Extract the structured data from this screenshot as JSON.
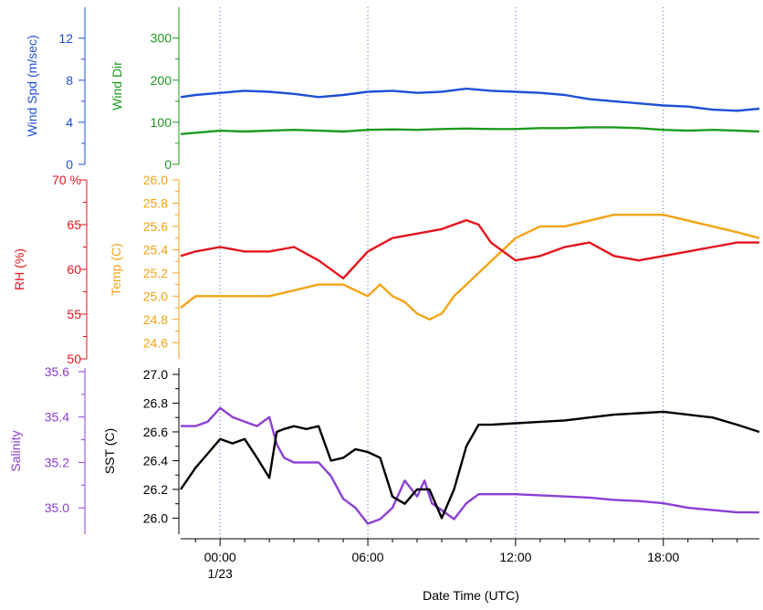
{
  "chart_data": {
    "type": "line",
    "x_axis": {
      "label": "Date Time (UTC)",
      "ticks": [
        "00:00",
        "06:00",
        "12:00",
        "18:00"
      ],
      "date_label": "1/23",
      "range_hours": [
        -1.6,
        21.9
      ],
      "grid": "dotted vertical at 00:00, 06:00, 12:00, 18:00"
    },
    "panels": [
      {
        "axes": [
          {
            "label": "Wind Spd (m/sec)",
            "ticks": [
              "0",
              "4",
              "8",
              "12"
            ],
            "range": [
              0,
              14.5
            ],
            "color": "#1f4fd8"
          },
          {
            "label": "Wind Dir",
            "ticks": [
              "0",
              "100",
              "200",
              "300"
            ],
            "range": [
              0,
              360
            ],
            "color": "#1d9a1d"
          }
        ],
        "series": [
          {
            "axis": "Wind Dir",
            "color": "#1d9a1d",
            "x": [
              -1.6,
              -1,
              0,
              1,
              2,
              3,
              4,
              5,
              6,
              7,
              8,
              9,
              10,
              11,
              12,
              13,
              14,
              15,
              16,
              17,
              18,
              19,
              20,
              21,
              21.9
            ],
            "y": [
              72,
              75,
              80,
              78,
              80,
              82,
              80,
              78,
              82,
              83,
              82,
              84,
              85,
              84,
              84,
              86,
              86,
              88,
              88,
              86,
              82,
              80,
              82,
              80,
              78
            ]
          },
          {
            "axis": "Wind Spd (m/sec)",
            "color": "#1f4fd8",
            "x": [
              -1.6,
              -1,
              0,
              1,
              2,
              3,
              4,
              5,
              6,
              7,
              8,
              9,
              10,
              11,
              12,
              13,
              14,
              15,
              16,
              17,
              18,
              19,
              20,
              21,
              21.9
            ],
            "y": [
              6.4,
              6.6,
              6.8,
              7.0,
              6.9,
              6.7,
              6.4,
              6.6,
              6.9,
              7.0,
              6.8,
              6.9,
              7.2,
              7.0,
              6.9,
              6.8,
              6.6,
              6.2,
              6.0,
              5.8,
              5.6,
              5.5,
              5.2,
              5.1,
              5.3
            ]
          }
        ]
      },
      {
        "axes": [
          {
            "label": "RH (%)",
            "ticks": [
              "50",
              "55",
              "60",
              "65",
              "70 %"
            ],
            "range": [
              50,
              70
            ],
            "color": "#e5141c"
          },
          {
            "label": "Temp (C)",
            "ticks": [
              "24.6",
              "24.8",
              "25.0",
              "25.2",
              "25.4",
              "25.6",
              "25.8",
              "26.0"
            ],
            "range": [
              24.5,
              26.0
            ],
            "color": "#f5a312"
          }
        ],
        "series": [
          {
            "axis": "Temp (C)",
            "color": "#f5a312",
            "x": [
              -1.6,
              -1,
              0,
              1,
              2,
              3,
              4,
              5,
              6,
              6.5,
              7,
              7.5,
              8,
              8.5,
              9,
              9.5,
              10,
              11,
              12,
              13,
              14,
              15,
              16,
              17,
              18,
              19,
              20,
              21,
              21.9
            ],
            "y": [
              24.9,
              25.0,
              25.0,
              25.0,
              25.0,
              25.05,
              25.1,
              25.1,
              25.0,
              25.1,
              25.0,
              24.95,
              24.85,
              24.8,
              24.85,
              25.0,
              25.1,
              25.3,
              25.5,
              25.6,
              25.6,
              25.65,
              25.7,
              25.7,
              25.7,
              25.65,
              25.6,
              25.55,
              25.5
            ]
          },
          {
            "axis": "RH (%)",
            "color": "#e5141c",
            "x": [
              -1.6,
              -1,
              0,
              1,
              2,
              3,
              4,
              5,
              6,
              7,
              8,
              9,
              10,
              10.5,
              11,
              12,
              13,
              14,
              15,
              16,
              17,
              18,
              19,
              20,
              21,
              21.9
            ],
            "y": [
              61.5,
              62,
              62.5,
              62,
              62,
              62.5,
              61,
              59,
              62,
              63.5,
              64,
              64.5,
              65.5,
              65,
              63,
              61,
              61.5,
              62.5,
              63,
              61.5,
              61,
              61.5,
              62,
              62.5,
              63,
              63
            ]
          }
        ]
      },
      {
        "axes": [
          {
            "label": "Salinity",
            "ticks": [
              "35.0",
              "35.2",
              "35.4",
              "35.6"
            ],
            "range": [
              34.92,
              35.6
            ],
            "color": "#8b3fd6"
          },
          {
            "label": "SST (C)",
            "ticks": [
              "26.0",
              "26.2",
              "26.4",
              "26.6",
              "26.8",
              "27.0"
            ],
            "range": [
              25.92,
              27.0
            ],
            "color": "#000000"
          }
        ],
        "series": [
          {
            "axis": "Salinity",
            "color": "#8b3fd6",
            "x": [
              -1.6,
              -1,
              -0.5,
              0,
              0.5,
              1,
              1.5,
              2,
              2.3,
              2.6,
              3,
              4,
              4.5,
              5,
              5.5,
              6,
              6.5,
              7,
              7.5,
              8,
              8.3,
              8.6,
              9,
              9.5,
              10,
              10.5,
              11,
              12,
              13,
              14,
              15,
              16,
              17,
              18,
              19,
              20,
              21,
              21.9
            ],
            "y": [
              35.36,
              35.36,
              35.38,
              35.44,
              35.4,
              35.38,
              35.36,
              35.4,
              35.28,
              35.22,
              35.2,
              35.2,
              35.14,
              35.04,
              35.0,
              34.93,
              34.95,
              35.0,
              35.12,
              35.05,
              35.12,
              35.02,
              34.99,
              34.95,
              35.02,
              35.06,
              35.06,
              35.06,
              35.055,
              35.05,
              35.045,
              35.035,
              35.03,
              35.02,
              35.0,
              34.99,
              34.98,
              34.98
            ]
          },
          {
            "axis": "SST (C)",
            "color": "#000000",
            "x": [
              -1.6,
              -1,
              -0.5,
              0,
              0.5,
              1,
              1.5,
              2,
              2.3,
              2.6,
              3,
              3.5,
              4,
              4.5,
              5,
              5.5,
              6,
              6.5,
              7,
              7.5,
              8,
              8.5,
              9,
              9.5,
              10,
              10.5,
              11,
              12,
              13,
              14,
              15,
              16,
              17,
              18,
              19,
              20,
              21,
              21.9
            ],
            "y": [
              26.2,
              26.35,
              26.45,
              26.55,
              26.52,
              26.55,
              26.42,
              26.28,
              26.6,
              26.62,
              26.64,
              26.62,
              26.64,
              26.4,
              26.42,
              26.48,
              26.46,
              26.42,
              26.15,
              26.1,
              26.2,
              26.2,
              26.0,
              26.2,
              26.5,
              26.65,
              26.65,
              26.66,
              26.67,
              26.68,
              26.7,
              26.72,
              26.73,
              26.74,
              26.72,
              26.7,
              26.65,
              26.6
            ]
          }
        ]
      }
    ]
  }
}
